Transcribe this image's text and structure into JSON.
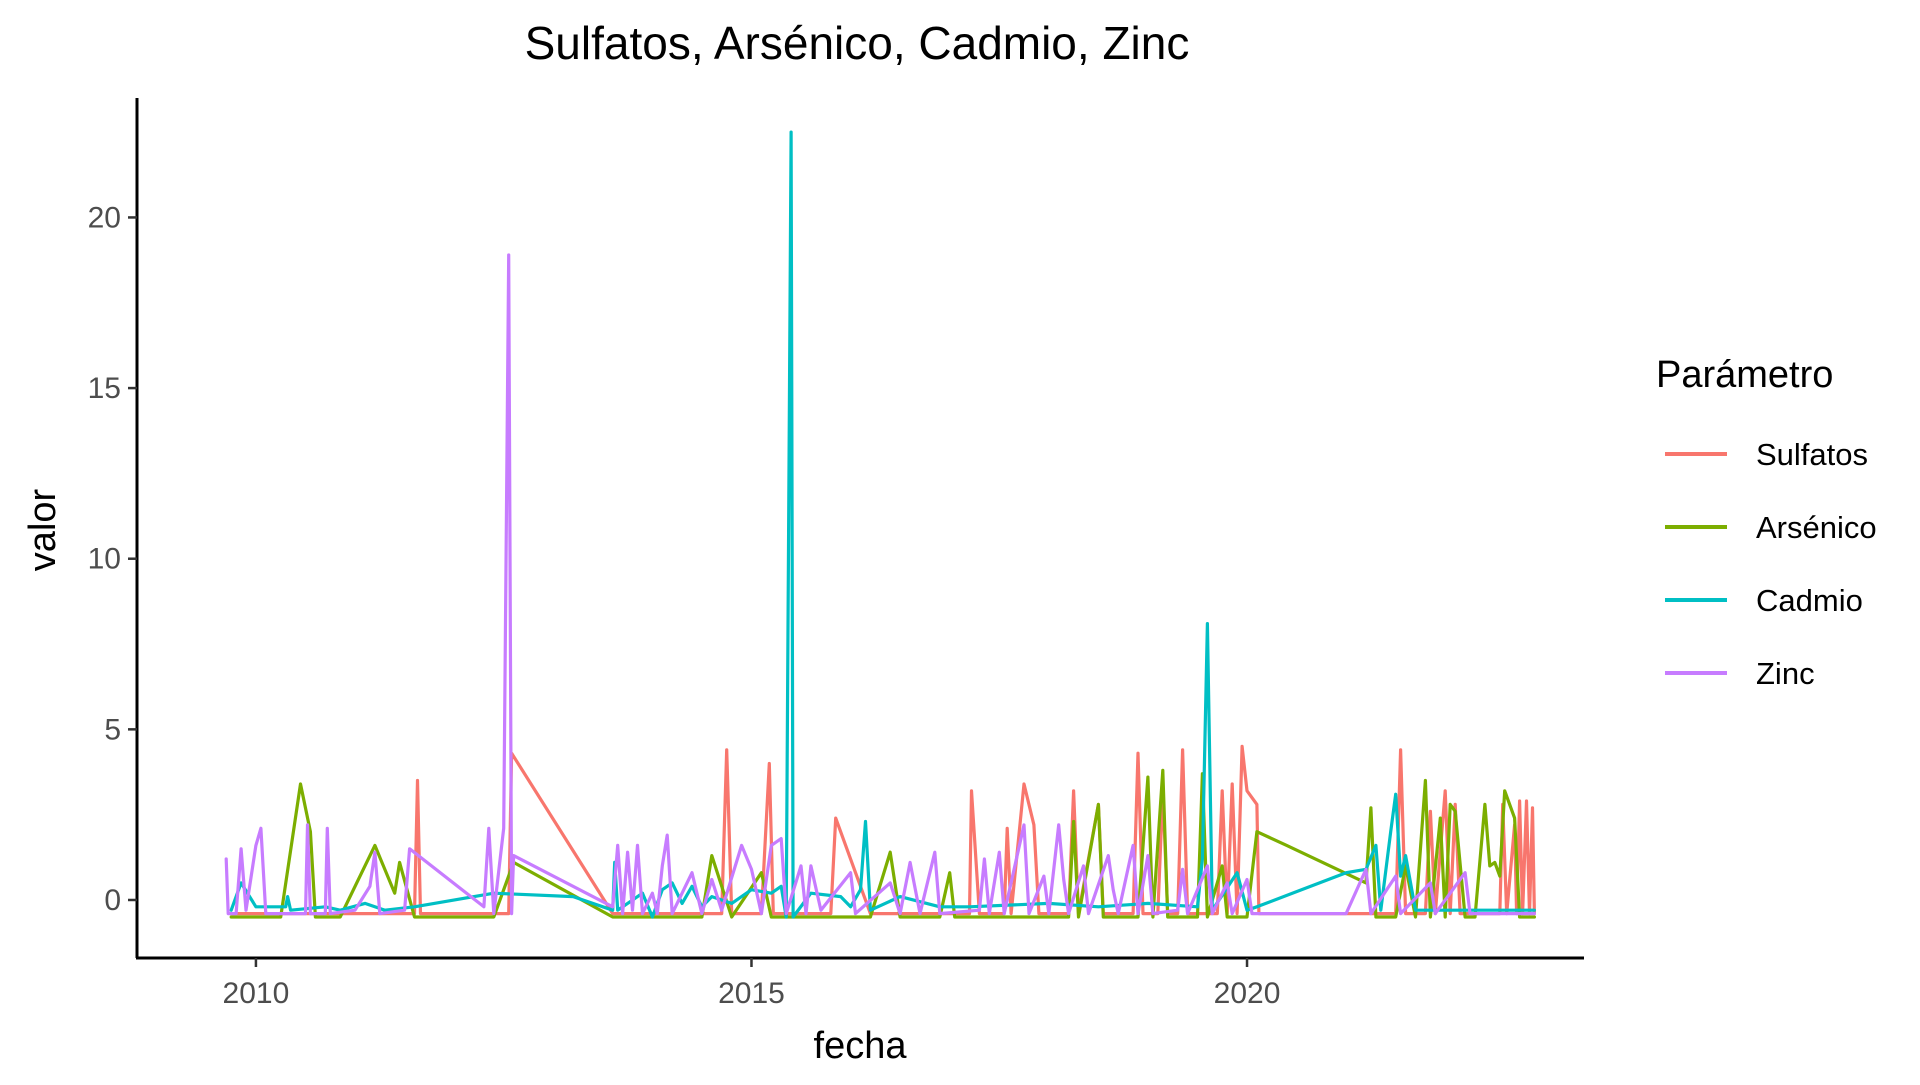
{
  "chart_data": {
    "type": "line",
    "title": "Sulfatos, Arsénico, Cadmio, Zinc",
    "xlabel": "fecha",
    "ylabel": "valor",
    "xlim": [
      2008.8,
      2023.4
    ],
    "ylim": [
      -1.7,
      23.5
    ],
    "x_ticks": [
      2010,
      2015,
      2020
    ],
    "x_tick_labels": [
      "2010",
      "2015",
      "2020"
    ],
    "y_ticks": [
      0,
      5,
      10,
      15,
      20
    ],
    "y_tick_labels": [
      "0",
      "5",
      "10",
      "15",
      "20"
    ],
    "grid": false,
    "legend": {
      "title": "Parámetro",
      "position": "right"
    },
    "series": [
      {
        "name": "Sulfatos",
        "color": "#F8766D",
        "points": [
          [
            2009.75,
            -0.4
          ],
          [
            2011.0,
            -0.4
          ],
          [
            2011.6,
            -0.4
          ],
          [
            2011.63,
            3.5
          ],
          [
            2011.66,
            -0.4
          ],
          [
            2012.4,
            -0.4
          ],
          [
            2012.55,
            -0.4
          ],
          [
            2012.58,
            4.3
          ],
          [
            2013.6,
            -0.4
          ],
          [
            2014.0,
            -0.4
          ],
          [
            2014.6,
            -0.4
          ],
          [
            2014.7,
            -0.4
          ],
          [
            2014.75,
            4.4
          ],
          [
            2014.8,
            -0.4
          ],
          [
            2015.1,
            -0.4
          ],
          [
            2015.18,
            4.0
          ],
          [
            2015.22,
            -0.4
          ],
          [
            2015.8,
            -0.4
          ],
          [
            2015.85,
            2.4
          ],
          [
            2016.2,
            -0.4
          ],
          [
            2016.6,
            -0.4
          ],
          [
            2017.0,
            -0.4
          ],
          [
            2017.2,
            -0.4
          ],
          [
            2017.22,
            3.2
          ],
          [
            2017.3,
            -0.4
          ],
          [
            2017.55,
            -0.4
          ],
          [
            2017.58,
            2.1
          ],
          [
            2017.62,
            -0.4
          ],
          [
            2017.75,
            3.4
          ],
          [
            2017.85,
            2.2
          ],
          [
            2017.9,
            -0.4
          ],
          [
            2018.2,
            -0.4
          ],
          [
            2018.25,
            3.2
          ],
          [
            2018.3,
            -0.4
          ],
          [
            2018.5,
            2.8
          ],
          [
            2018.55,
            -0.4
          ],
          [
            2018.85,
            -0.4
          ],
          [
            2018.9,
            4.3
          ],
          [
            2018.95,
            -0.4
          ],
          [
            2019.1,
            -0.4
          ],
          [
            2019.15,
            3.2
          ],
          [
            2019.2,
            -0.4
          ],
          [
            2019.3,
            -0.4
          ],
          [
            2019.35,
            4.4
          ],
          [
            2019.4,
            -0.4
          ],
          [
            2019.7,
            -0.4
          ],
          [
            2019.75,
            3.2
          ],
          [
            2019.8,
            -0.4
          ],
          [
            2019.85,
            3.4
          ],
          [
            2019.9,
            -0.4
          ],
          [
            2019.95,
            4.5
          ],
          [
            2020.0,
            3.2
          ],
          [
            2020.1,
            2.8
          ],
          [
            2020.12,
            -0.4
          ],
          [
            2021.2,
            -0.4
          ],
          [
            2021.5,
            -0.4
          ],
          [
            2021.55,
            4.4
          ],
          [
            2021.6,
            -0.4
          ],
          [
            2021.8,
            -0.4
          ],
          [
            2021.85,
            2.6
          ],
          [
            2021.9,
            -0.4
          ],
          [
            2022.0,
            3.2
          ],
          [
            2022.05,
            -0.4
          ],
          [
            2022.1,
            2.8
          ],
          [
            2022.15,
            -0.4
          ],
          [
            2022.4,
            -0.4
          ],
          [
            2022.55,
            -0.4
          ],
          [
            2022.58,
            2.8
          ],
          [
            2022.62,
            -0.4
          ],
          [
            2022.7,
            2.2
          ],
          [
            2022.72,
            -0.4
          ],
          [
            2022.75,
            2.9
          ],
          [
            2022.78,
            -0.4
          ],
          [
            2022.82,
            2.9
          ],
          [
            2022.85,
            -0.4
          ],
          [
            2022.88,
            2.7
          ],
          [
            2022.9,
            -0.4
          ]
        ]
      },
      {
        "name": "Arsénico",
        "color": "#7CAE00",
        "points": [
          [
            2009.75,
            -0.5
          ],
          [
            2010.25,
            -0.5
          ],
          [
            2010.45,
            3.4
          ],
          [
            2010.55,
            2.0
          ],
          [
            2010.6,
            -0.5
          ],
          [
            2010.85,
            -0.5
          ],
          [
            2011.2,
            1.6
          ],
          [
            2011.4,
            0.2
          ],
          [
            2011.45,
            1.1
          ],
          [
            2011.6,
            -0.5
          ],
          [
            2012.4,
            -0.5
          ],
          [
            2012.6,
            1.1
          ],
          [
            2013.6,
            -0.5
          ],
          [
            2014.5,
            -0.5
          ],
          [
            2014.6,
            1.3
          ],
          [
            2014.7,
            0.4
          ],
          [
            2014.8,
            -0.5
          ],
          [
            2015.1,
            0.8
          ],
          [
            2015.2,
            -0.5
          ],
          [
            2016.2,
            -0.5
          ],
          [
            2016.4,
            1.4
          ],
          [
            2016.5,
            -0.5
          ],
          [
            2016.9,
            -0.5
          ],
          [
            2017.0,
            0.8
          ],
          [
            2017.05,
            -0.5
          ],
          [
            2017.8,
            -0.5
          ],
          [
            2018.2,
            -0.5
          ],
          [
            2018.25,
            2.3
          ],
          [
            2018.3,
            -0.5
          ],
          [
            2018.5,
            2.8
          ],
          [
            2018.55,
            -0.5
          ],
          [
            2018.9,
            -0.5
          ],
          [
            2019.0,
            3.6
          ],
          [
            2019.05,
            -0.5
          ],
          [
            2019.15,
            3.8
          ],
          [
            2019.2,
            -0.5
          ],
          [
            2019.5,
            -0.5
          ],
          [
            2019.55,
            3.7
          ],
          [
            2019.6,
            -0.5
          ],
          [
            2019.75,
            1.0
          ],
          [
            2019.8,
            -0.5
          ],
          [
            2020.0,
            -0.5
          ],
          [
            2020.1,
            2.0
          ],
          [
            2020.4,
            1.6
          ],
          [
            2021.2,
            0.5
          ],
          [
            2021.25,
            2.7
          ],
          [
            2021.3,
            -0.5
          ],
          [
            2021.5,
            -0.5
          ],
          [
            2021.6,
            1.0
          ],
          [
            2021.7,
            -0.5
          ],
          [
            2021.8,
            3.5
          ],
          [
            2021.85,
            -0.5
          ],
          [
            2021.95,
            2.4
          ],
          [
            2022.0,
            -0.5
          ],
          [
            2022.05,
            2.8
          ],
          [
            2022.1,
            2.6
          ],
          [
            2022.2,
            -0.5
          ],
          [
            2022.3,
            -0.5
          ],
          [
            2022.4,
            2.8
          ],
          [
            2022.45,
            1.0
          ],
          [
            2022.5,
            1.1
          ],
          [
            2022.55,
            0.7
          ],
          [
            2022.6,
            3.2
          ],
          [
            2022.7,
            2.4
          ],
          [
            2022.75,
            -0.5
          ],
          [
            2022.9,
            -0.5
          ]
        ]
      },
      {
        "name": "Cadmio",
        "color": "#00BFC4",
        "points": [
          [
            2009.75,
            -0.3
          ],
          [
            2009.85,
            0.5
          ],
          [
            2010.0,
            -0.2
          ],
          [
            2010.3,
            -0.2
          ],
          [
            2010.32,
            0.1
          ],
          [
            2010.35,
            -0.3
          ],
          [
            2010.7,
            -0.2
          ],
          [
            2010.85,
            -0.3
          ],
          [
            2011.1,
            -0.1
          ],
          [
            2011.3,
            -0.3
          ],
          [
            2011.6,
            -0.2
          ],
          [
            2012.4,
            0.2
          ],
          [
            2013.2,
            0.1
          ],
          [
            2013.6,
            -0.3
          ],
          [
            2013.62,
            1.1
          ],
          [
            2013.65,
            -0.3
          ],
          [
            2013.9,
            0.2
          ],
          [
            2014.0,
            -0.5
          ],
          [
            2014.1,
            0.3
          ],
          [
            2014.2,
            0.5
          ],
          [
            2014.3,
            -0.1
          ],
          [
            2014.4,
            0.4
          ],
          [
            2014.5,
            -0.2
          ],
          [
            2014.6,
            0.1
          ],
          [
            2014.8,
            -0.1
          ],
          [
            2015.0,
            0.3
          ],
          [
            2015.2,
            0.2
          ],
          [
            2015.3,
            0.4
          ],
          [
            2015.35,
            -0.5
          ],
          [
            2015.4,
            22.5
          ],
          [
            2015.42,
            -0.5
          ],
          [
            2015.6,
            0.2
          ],
          [
            2015.9,
            0.1
          ],
          [
            2016.0,
            -0.2
          ],
          [
            2016.1,
            0.3
          ],
          [
            2016.15,
            2.3
          ],
          [
            2016.2,
            -0.3
          ],
          [
            2016.5,
            0.1
          ],
          [
            2016.9,
            -0.2
          ],
          [
            2017.2,
            -0.2
          ],
          [
            2018.0,
            -0.1
          ],
          [
            2018.5,
            -0.2
          ],
          [
            2019.0,
            -0.1
          ],
          [
            2019.5,
            -0.2
          ],
          [
            2019.55,
            1.2
          ],
          [
            2019.6,
            8.1
          ],
          [
            2019.65,
            -0.3
          ],
          [
            2019.9,
            0.8
          ],
          [
            2020.0,
            -0.3
          ],
          [
            2020.1,
            -0.2
          ],
          [
            2021.0,
            0.8
          ],
          [
            2021.2,
            0.9
          ],
          [
            2021.3,
            1.6
          ],
          [
            2021.35,
            -0.3
          ],
          [
            2021.45,
            2.0
          ],
          [
            2021.5,
            3.1
          ],
          [
            2021.55,
            0.7
          ],
          [
            2021.6,
            1.3
          ],
          [
            2021.7,
            -0.3
          ],
          [
            2022.0,
            -0.3
          ],
          [
            2022.5,
            -0.3
          ],
          [
            2022.9,
            -0.3
          ]
        ]
      },
      {
        "name": "Zinc",
        "color": "#C77CFF",
        "points": [
          [
            2009.7,
            1.2
          ],
          [
            2009.72,
            -0.4
          ],
          [
            2009.8,
            -0.4
          ],
          [
            2009.85,
            1.5
          ],
          [
            2009.9,
            -0.3
          ],
          [
            2010.0,
            1.6
          ],
          [
            2010.05,
            2.1
          ],
          [
            2010.1,
            -0.4
          ],
          [
            2010.5,
            -0.4
          ],
          [
            2010.52,
            2.2
          ],
          [
            2010.55,
            -0.4
          ],
          [
            2010.7,
            -0.4
          ],
          [
            2010.72,
            2.1
          ],
          [
            2010.75,
            -0.4
          ],
          [
            2011.0,
            -0.3
          ],
          [
            2011.15,
            0.4
          ],
          [
            2011.2,
            1.4
          ],
          [
            2011.25,
            -0.4
          ],
          [
            2011.5,
            -0.3
          ],
          [
            2011.55,
            1.5
          ],
          [
            2012.3,
            -0.2
          ],
          [
            2012.35,
            2.1
          ],
          [
            2012.4,
            -0.4
          ],
          [
            2012.5,
            2.1
          ],
          [
            2012.55,
            18.9
          ],
          [
            2012.58,
            -0.4
          ],
          [
            2012.6,
            1.3
          ],
          [
            2013.6,
            -0.2
          ],
          [
            2013.65,
            1.6
          ],
          [
            2013.7,
            -0.4
          ],
          [
            2013.75,
            1.4
          ],
          [
            2013.8,
            -0.3
          ],
          [
            2013.85,
            1.6
          ],
          [
            2013.9,
            -0.4
          ],
          [
            2014.0,
            0.2
          ],
          [
            2014.05,
            -0.4
          ],
          [
            2014.1,
            1.0
          ],
          [
            2014.15,
            1.9
          ],
          [
            2014.2,
            -0.4
          ],
          [
            2014.4,
            0.8
          ],
          [
            2014.5,
            -0.4
          ],
          [
            2014.6,
            0.6
          ],
          [
            2014.7,
            -0.3
          ],
          [
            2014.9,
            1.6
          ],
          [
            2015.0,
            0.9
          ],
          [
            2015.1,
            -0.4
          ],
          [
            2015.2,
            1.6
          ],
          [
            2015.3,
            1.8
          ],
          [
            2015.35,
            -0.4
          ],
          [
            2015.5,
            1.0
          ],
          [
            2015.55,
            -0.4
          ],
          [
            2015.6,
            1.0
          ],
          [
            2015.7,
            -0.3
          ],
          [
            2016.0,
            0.8
          ],
          [
            2016.05,
            -0.4
          ],
          [
            2016.4,
            0.5
          ],
          [
            2016.5,
            -0.4
          ],
          [
            2016.6,
            1.1
          ],
          [
            2016.7,
            -0.4
          ],
          [
            2016.85,
            1.4
          ],
          [
            2016.9,
            -0.4
          ],
          [
            2017.3,
            -0.3
          ],
          [
            2017.35,
            1.2
          ],
          [
            2017.4,
            -0.4
          ],
          [
            2017.5,
            1.4
          ],
          [
            2017.55,
            -0.4
          ],
          [
            2017.75,
            2.2
          ],
          [
            2017.8,
            -0.4
          ],
          [
            2017.95,
            0.7
          ],
          [
            2018.0,
            -0.4
          ],
          [
            2018.1,
            2.2
          ],
          [
            2018.15,
            0.6
          ],
          [
            2018.2,
            -0.4
          ],
          [
            2018.35,
            1.0
          ],
          [
            2018.4,
            -0.4
          ],
          [
            2018.6,
            1.3
          ],
          [
            2018.65,
            0.3
          ],
          [
            2018.7,
            -0.4
          ],
          [
            2018.85,
            1.6
          ],
          [
            2018.9,
            -0.4
          ],
          [
            2019.0,
            1.3
          ],
          [
            2019.05,
            -0.4
          ],
          [
            2019.3,
            -0.3
          ],
          [
            2019.35,
            0.9
          ],
          [
            2019.4,
            -0.4
          ],
          [
            2019.6,
            1.0
          ],
          [
            2019.65,
            -0.4
          ],
          [
            2019.8,
            0.5
          ],
          [
            2019.85,
            -0.4
          ],
          [
            2020.0,
            0.6
          ],
          [
            2020.05,
            -0.4
          ],
          [
            2021.0,
            -0.4
          ],
          [
            2021.2,
            0.9
          ],
          [
            2021.25,
            -0.4
          ],
          [
            2021.5,
            0.7
          ],
          [
            2021.55,
            -0.4
          ],
          [
            2021.85,
            0.5
          ],
          [
            2021.9,
            -0.4
          ],
          [
            2022.2,
            0.8
          ],
          [
            2022.25,
            -0.4
          ],
          [
            2022.9,
            -0.4
          ]
        ]
      }
    ]
  }
}
